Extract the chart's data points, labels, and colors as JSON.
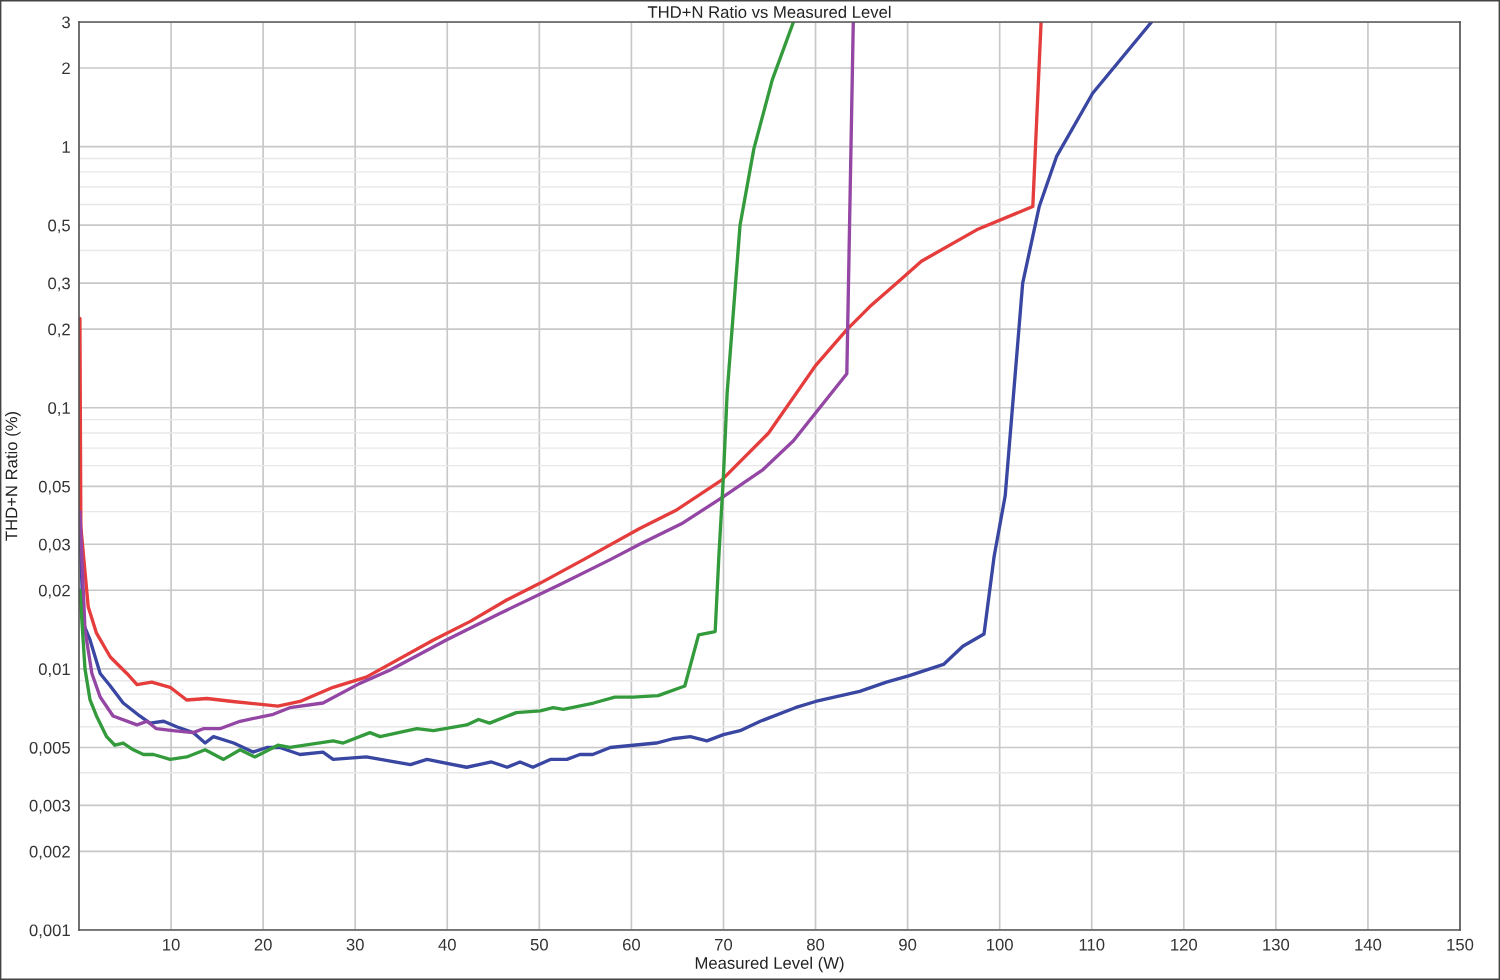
{
  "chart_data": {
    "type": "line",
    "title": "THD+N Ratio vs Measured Level",
    "xlabel": "Measured Level (W)",
    "ylabel": "THD+N Ratio (%)",
    "log": "y",
    "grid": true,
    "marker": "none",
    "line_style": "solid",
    "xlim": [
      0,
      150
    ],
    "xticks": [
      10,
      20,
      30,
      40,
      50,
      60,
      70,
      80,
      90,
      100,
      110,
      120,
      130,
      140,
      150
    ],
    "ylim": [
      0.001,
      3
    ],
    "yticks": [
      {
        "value": 0.001,
        "label": "0,001"
      },
      {
        "value": 0.002,
        "label": "0,002"
      },
      {
        "value": 0.003,
        "label": "0,003"
      },
      {
        "value": 0.004,
        "label": null
      },
      {
        "value": 0.005,
        "label": "0,005"
      },
      {
        "value": 0.006,
        "label": null
      },
      {
        "value": 0.007,
        "label": null
      },
      {
        "value": 0.008,
        "label": null
      },
      {
        "value": 0.009,
        "label": null
      },
      {
        "value": 0.01,
        "label": "0,01"
      },
      {
        "value": 0.02,
        "label": "0,02"
      },
      {
        "value": 0.03,
        "label": "0,03"
      },
      {
        "value": 0.04,
        "label": null
      },
      {
        "value": 0.05,
        "label": "0,05"
      },
      {
        "value": 0.06,
        "label": null
      },
      {
        "value": 0.07,
        "label": null
      },
      {
        "value": 0.08,
        "label": null
      },
      {
        "value": 0.09,
        "label": null
      },
      {
        "value": 0.1,
        "label": "0,1"
      },
      {
        "value": 0.2,
        "label": "0,2"
      },
      {
        "value": 0.3,
        "label": "0,3"
      },
      {
        "value": 0.4,
        "label": null
      },
      {
        "value": 0.5,
        "label": "0,5"
      },
      {
        "value": 0.6,
        "label": null
      },
      {
        "value": 0.7,
        "label": null
      },
      {
        "value": 0.8,
        "label": null
      },
      {
        "value": 0.9,
        "label": null
      },
      1,
      2,
      3
    ],
    "series": [
      {
        "color": "#e53c3c",
        "x": [
          0.1,
          0.2,
          1.0,
          1.9,
          3.4,
          5.2,
          6.3,
          7.9,
          9.9,
          11.7,
          13.9,
          16.7,
          21.6,
          24.0,
          27.6,
          31.2,
          38.5,
          42.5,
          46.5,
          50.1,
          54.8,
          60.9,
          64.8,
          69.8,
          74.9,
          80.0,
          83.4,
          85.9,
          88.8,
          91.5,
          97.5,
          103.6,
          104.5
        ],
        "values": [
          0.22,
          0.035,
          0.0173,
          0.0137,
          0.0111,
          0.0096,
          0.0087,
          0.0089,
          0.0085,
          0.0076,
          0.0077,
          0.0075,
          0.0072,
          0.0075,
          0.0085,
          0.0093,
          0.0129,
          0.0152,
          0.0184,
          0.0213,
          0.0262,
          0.0345,
          0.0404,
          0.0528,
          0.08,
          0.145,
          0.199,
          0.244,
          0.3,
          0.364,
          0.48,
          0.59,
          3
        ]
      },
      {
        "color": "#3a47a2",
        "x": [
          0.1,
          0.47,
          1.2,
          2.3,
          3.4,
          4.8,
          6.6,
          7.7,
          9.2,
          10.6,
          12.4,
          13.7,
          14.6,
          16.8,
          18.9,
          20.4,
          21.8,
          24.0,
          26.5,
          27.6,
          31.2,
          36.0,
          37.8,
          42.1,
          44.8,
          46.5,
          47.9,
          49.3,
          51.2,
          53.0,
          54.4,
          55.8,
          57.7,
          62.7,
          64.5,
          66.4,
          68.2,
          70.0,
          71.8,
          74.0,
          77.8,
          80.0,
          84.8,
          87.7,
          90.1,
          93.9,
          96.0,
          98.3,
          99.4,
          100.6,
          102.5,
          104.3,
          106.2,
          110.1,
          116.5
        ],
        "values": [
          0.035,
          0.0149,
          0.0129,
          0.0096,
          0.0086,
          0.0074,
          0.0066,
          0.0062,
          0.0063,
          0.006,
          0.0057,
          0.0052,
          0.0055,
          0.0052,
          0.0048,
          0.005,
          0.005,
          0.0047,
          0.0048,
          0.0045,
          0.0046,
          0.0043,
          0.0045,
          0.0042,
          0.0044,
          0.0042,
          0.0044,
          0.0042,
          0.0045,
          0.0045,
          0.0047,
          0.0047,
          0.005,
          0.0052,
          0.0054,
          0.0055,
          0.0053,
          0.0056,
          0.0058,
          0.0063,
          0.0071,
          0.0075,
          0.0082,
          0.0089,
          0.0094,
          0.0104,
          0.0122,
          0.0136,
          0.027,
          0.046,
          0.3,
          0.59,
          0.92,
          1.6,
          3
        ]
      },
      {
        "color": "#9346a3",
        "x": [
          0.1,
          0.65,
          1.4,
          2.3,
          3.7,
          6.3,
          7.4,
          8.4,
          10.2,
          12.4,
          13.5,
          15.3,
          17.5,
          21.1,
          22.9,
          26.5,
          30.5,
          33.8,
          39.9,
          45.7,
          52.2,
          57.7,
          60.9,
          65.6,
          69.8,
          74.3,
          77.6,
          83.4,
          84.1
        ],
        "values": [
          0.04,
          0.0141,
          0.0096,
          0.0078,
          0.0066,
          0.0061,
          0.0063,
          0.0059,
          0.0058,
          0.0057,
          0.0059,
          0.0059,
          0.0063,
          0.0067,
          0.0071,
          0.0074,
          0.0088,
          0.0099,
          0.0129,
          0.0163,
          0.021,
          0.0262,
          0.03,
          0.0362,
          0.0452,
          0.058,
          0.0747,
          0.135,
          3
        ]
      },
      {
        "color": "#339b3c",
        "x": [
          0.1,
          0.65,
          1.2,
          1.9,
          3.0,
          3.9,
          4.8,
          5.9,
          7.0,
          8.1,
          9.9,
          11.7,
          13.7,
          15.7,
          17.5,
          19.1,
          21.6,
          22.9,
          27.6,
          28.7,
          31.6,
          32.7,
          36.7,
          38.5,
          42.1,
          43.4,
          44.6,
          47.5,
          50.1,
          51.5,
          52.6,
          55.9,
          58.2,
          60.2,
          62.9,
          65.8,
          67.3,
          69.1,
          69.5,
          70.0,
          70.4,
          71.8,
          73.3,
          75.3,
          77.6
        ],
        "values": [
          0.02,
          0.01,
          0.0076,
          0.0066,
          0.0055,
          0.0051,
          0.0052,
          0.0049,
          0.0047,
          0.0047,
          0.0045,
          0.0046,
          0.0049,
          0.0045,
          0.0049,
          0.0046,
          0.0051,
          0.005,
          0.0053,
          0.0052,
          0.0057,
          0.0055,
          0.0059,
          0.0058,
          0.0061,
          0.0064,
          0.0062,
          0.0068,
          0.0069,
          0.0071,
          0.007,
          0.0074,
          0.0078,
          0.0078,
          0.0079,
          0.0086,
          0.0135,
          0.0139,
          0.027,
          0.055,
          0.114,
          0.5,
          0.98,
          1.8,
          3
        ]
      }
    ]
  }
}
